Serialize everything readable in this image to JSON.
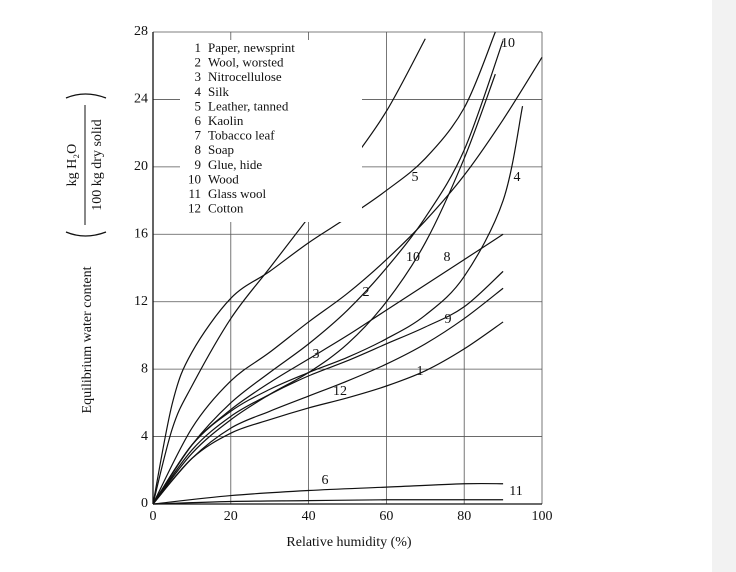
{
  "chart_data": {
    "type": "line",
    "xlabel": "Relative humidity (%)",
    "ylabel": "Equilibrium water content",
    "ylabel_unit_numerator": "kg H₂O",
    "ylabel_unit_denominator": "100 kg dry solid",
    "xlim": [
      0,
      100
    ],
    "xticks": [
      0,
      20,
      40,
      60,
      80,
      100
    ],
    "ylim": [
      0,
      28
    ],
    "yticks": [
      0,
      4,
      8,
      12,
      16,
      20,
      24,
      28
    ],
    "grid": true,
    "color": "#111111",
    "series": [
      {
        "label": "1",
        "name": "Paper, newsprint",
        "x": [
          0,
          10,
          20,
          30,
          40,
          50,
          60,
          70,
          80,
          90
        ],
        "values": [
          0,
          2.7,
          4.2,
          5,
          5.7,
          6.3,
          7,
          7.9,
          9.2,
          10.8
        ]
      },
      {
        "label": "2",
        "name": "Wool, worsted",
        "x": [
          0,
          10,
          20,
          30,
          40,
          50,
          60,
          70,
          80,
          90,
          100
        ],
        "values": [
          0,
          4.5,
          7.3,
          9,
          10.8,
          12.5,
          14.5,
          16.8,
          19.5,
          22.8,
          26.5
        ]
      },
      {
        "label": "3",
        "name": "Nitrocellulose",
        "x": [
          0,
          10,
          20,
          30,
          40,
          50,
          60,
          70,
          80,
          90
        ],
        "values": [
          0,
          3.5,
          5.6,
          7.2,
          8.6,
          10,
          11.5,
          13,
          14.5,
          16
        ]
      },
      {
        "label": "4",
        "name": "Silk",
        "x": [
          0,
          10,
          20,
          30,
          40,
          50,
          60,
          70,
          80,
          90,
          95
        ],
        "values": [
          0,
          3.5,
          5.5,
          6.8,
          7.8,
          8.7,
          9.8,
          11.2,
          13.5,
          18,
          23.6
        ]
      },
      {
        "label": "5",
        "name": "Leather, tanned",
        "x": [
          0,
          5,
          10,
          20,
          30,
          40,
          50,
          60,
          70,
          80,
          88
        ],
        "values": [
          0,
          6,
          9,
          12.2,
          13.8,
          15.5,
          17,
          18.6,
          20.5,
          23.5,
          28
        ]
      },
      {
        "label": "6",
        "name": "Kaolin",
        "x": [
          0,
          20,
          40,
          60,
          80,
          90
        ],
        "values": [
          0,
          0.5,
          0.8,
          1,
          1.2,
          1.2
        ]
      },
      {
        "label": "7",
        "name": "Tobacco leaf",
        "x": [
          0,
          5,
          10,
          20,
          30,
          40,
          50,
          60,
          70
        ],
        "values": [
          0,
          4.5,
          7,
          11,
          14,
          17,
          20,
          23.3,
          27.6
        ]
      },
      {
        "label": "8",
        "name": "Soap",
        "x": [
          0,
          10,
          20,
          30,
          40,
          50,
          60,
          70,
          80,
          88
        ],
        "values": [
          0,
          3,
          5,
          6.5,
          7.8,
          9.5,
          12,
          15.5,
          20.5,
          25.5
        ]
      },
      {
        "label": "9",
        "name": "Glue, hide",
        "x": [
          0,
          10,
          20,
          30,
          40,
          50,
          60,
          70,
          80,
          90
        ],
        "values": [
          0,
          3.2,
          5.2,
          6.5,
          7.6,
          8.5,
          9.5,
          10.5,
          11.7,
          13.8
        ]
      },
      {
        "label": "10",
        "name": "Wood",
        "x": [
          0,
          10,
          20,
          30,
          40,
          50,
          60,
          70,
          80,
          90
        ],
        "values": [
          0,
          3.5,
          6,
          7.8,
          9.5,
          11.5,
          14,
          17,
          21,
          27.5
        ]
      },
      {
        "label": "11",
        "name": "Glass wool",
        "x": [
          0,
          20,
          40,
          60,
          80,
          90
        ],
        "values": [
          0,
          0.15,
          0.2,
          0.25,
          0.25,
          0.25
        ]
      },
      {
        "label": "12",
        "name": "Cotton",
        "x": [
          0,
          10,
          20,
          30,
          40,
          50,
          60,
          70,
          80,
          90
        ],
        "values": [
          0,
          2.7,
          4.5,
          5.5,
          6.4,
          7.3,
          8.3,
          9.5,
          11,
          12.8
        ]
      }
    ]
  }
}
